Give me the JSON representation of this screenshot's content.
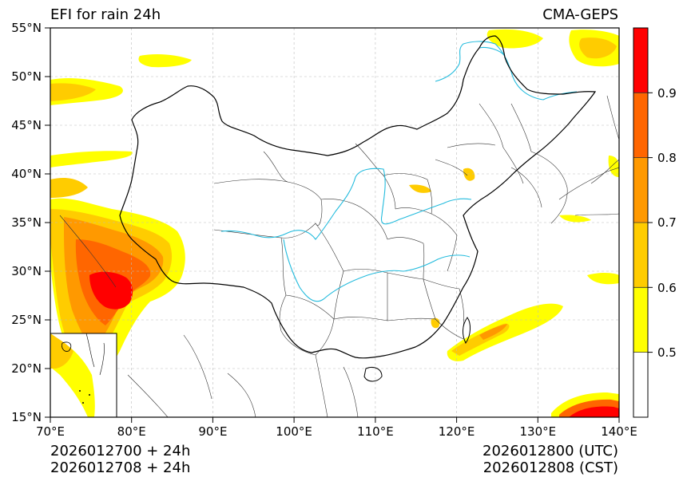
{
  "header": {
    "title": "EFI for rain 24h",
    "source": "CMA-GEPS"
  },
  "footer": {
    "init_utc": "2026012700 + 24h",
    "init_cst": "2026012708 + 24h",
    "valid_utc": "2026012800 (UTC)",
    "valid_cst": "2026012808 (CST)"
  },
  "map": {
    "lon_ticks": [
      "70°E",
      "80°E",
      "90°E",
      "100°E",
      "110°E",
      "120°E",
      "130°E",
      "140°E"
    ],
    "lat_ticks": [
      "15°N",
      "20°N",
      "25°N",
      "30°N",
      "35°N",
      "40°N",
      "45°N",
      "50°N",
      "55°N"
    ],
    "lon_range": [
      70,
      140
    ],
    "lat_range": [
      15,
      55
    ],
    "grid": true,
    "river_color": "#22bbdd",
    "inset": "South China Sea islands (bottom-left)"
  },
  "colorbar": {
    "labels": [
      "0.5",
      "0.6",
      "0.7",
      "0.8",
      "0.9"
    ],
    "levels": [
      {
        "min": 0.4,
        "max": 0.5,
        "color": "#ffffff"
      },
      {
        "min": 0.5,
        "max": 0.6,
        "color": "#ffff00"
      },
      {
        "min": 0.6,
        "max": 0.7,
        "color": "#ffcc00"
      },
      {
        "min": 0.7,
        "max": 0.8,
        "color": "#ff9900"
      },
      {
        "min": 0.8,
        "max": 0.9,
        "color": "#ff6600"
      },
      {
        "min": 0.9,
        "max": 1.0,
        "color": "#ff0000"
      }
    ]
  }
}
